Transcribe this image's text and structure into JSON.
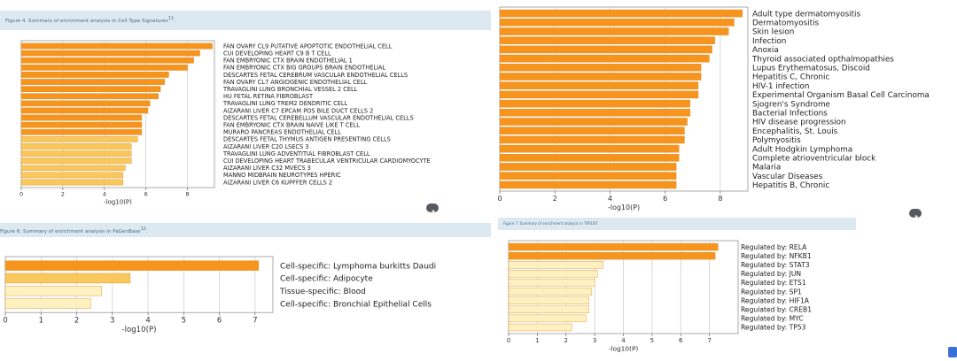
{
  "colors": {
    "bar_strong": "#f7941d",
    "bar_medium": "#f9c85c",
    "bar_light": "#fef1bf",
    "bar_stroke": "#d98a2a",
    "caption_bg": "#dde9f1",
    "caption_text": "#4a6a86",
    "grid": "#c9c9c9"
  },
  "chart_data": [
    {
      "id": "cell-type",
      "type": "bar",
      "orientation": "horizontal",
      "title": "Figure 4. Summary of enrichment analysis in Cell Type Signatures",
      "title_ref": "11",
      "xlabel": "-log10(P)",
      "xlim": [
        0,
        9.3
      ],
      "xticks": [
        0,
        2,
        4,
        6,
        8
      ],
      "grid": true,
      "categories": [
        "FAN OVARY CL9 PUTATIVE APOPTOTIC ENDOTHELIAL CELL",
        "CUI DEVELOPING HEART C9 B T CELL",
        "FAN EMBRYONIC CTX BRAIN ENDOTHELIAL 1",
        "FAN EMBRYONIC CTX BIG GROUPS BRAIN ENDOTHELIAL",
        "DESCARTES FETAL CEREBRUM VASCULAR ENDOTHELIAL CELLS",
        "FAN OVARY CL7 ANGIOGENIC ENDOTHELIAL CELL",
        "TRAVAGLINI LUNG BRONCHIAL VESSEL 2 CELL",
        "HU FETAL RETINA FIBROBLAST",
        "TRAVAGLINI LUNG TREM2 DENDRITIC CELL",
        "AIZARANI LIVER C7 EPCAM POS BILE DUCT CELLS 2",
        "DESCARTES FETAL CEREBELLUM VASCULAR ENDOTHELIAL CELLS",
        "FAN EMBRYONIC CTX BRAIN NAIVE LIKE T CELL",
        "MURARO PANCREAS ENDOTHELIAL CELL",
        "DESCARTES FETAL THYMUS ANTIGEN PRESENTING CELLS",
        "AIZARANI LIVER C20 LSECS 3",
        "TRAVAGLINI LUNG ADVENTITIAL FIBROBLAST CELL",
        "CUI DEVELOPING HEART TRABECULAR VENTRICULAR CARDIOMYOCYTE",
        "AIZARANI LIVER C32 MVECS 3",
        "MANNO MIDBRAIN NEUROTYPES HPERIC",
        "AIZARANI LIVER C6 KUPFFER CELLS 2"
      ],
      "values": [
        9.2,
        8.6,
        8.3,
        8.0,
        7.1,
        6.9,
        6.7,
        6.6,
        6.2,
        6.1,
        5.8,
        5.8,
        5.8,
        5.6,
        5.3,
        5.3,
        5.3,
        5.0,
        4.9,
        4.9
      ]
    },
    {
      "id": "disgenet",
      "type": "bar",
      "orientation": "horizontal",
      "title": "",
      "xlabel": "-log10(P)",
      "xlim": [
        0,
        9
      ],
      "xticks": [
        0,
        2,
        4,
        6,
        8
      ],
      "grid": true,
      "categories": [
        "Adult type dermatomyositis",
        "Dermatomyositis",
        "Skin lesion",
        "Infection",
        "Anoxia",
        "Thyroid associated opthalmopathies",
        "Lupus Erythematosus, Discoid",
        "Hepatitis C, Chronic",
        "HIV-1 infection",
        "Experimental Organism Basal Cell Carcinoma",
        "Sjogren's Syndrome",
        "Bacterial Infections",
        "HIV disease progression",
        "Encephalitis, St. Louis",
        "Polymyositis",
        "Adult Hodgkin Lymphoma",
        "Complete atrioventricular block",
        "Malaria",
        "Vascular Diseases",
        "Hepatitis B, Chronic"
      ],
      "values": [
        8.8,
        8.5,
        8.3,
        7.8,
        7.7,
        7.6,
        7.3,
        7.3,
        7.2,
        7.2,
        6.9,
        6.9,
        6.8,
        6.7,
        6.7,
        6.5,
        6.5,
        6.4,
        6.4,
        6.4
      ]
    },
    {
      "id": "pagenbase",
      "type": "bar",
      "orientation": "horizontal",
      "title": "Figure 6. Summary of enrichment analysis in PaGenBase",
      "title_ref": "12",
      "xlabel": "-log10(P)",
      "xlim": [
        0,
        7.5
      ],
      "xticks": [
        0,
        1,
        2,
        3,
        4,
        5,
        6,
        7
      ],
      "grid": true,
      "categories": [
        "Cell-specific: Lymphoma burkitts Daudi",
        "Cell-specific: Adipocyte",
        "Tissue-specific: Blood",
        "Cell-specific: Bronchial Epithelial Cells"
      ],
      "values": [
        7.1,
        3.5,
        2.7,
        2.4
      ]
    },
    {
      "id": "trrust",
      "type": "bar",
      "orientation": "horizontal",
      "title": "Figure 7. Summary of enrichment analysis in TRRUST",
      "xlabel": "-log10(P)",
      "xlim": [
        0,
        8
      ],
      "xticks": [
        0,
        1,
        2,
        3,
        4,
        5,
        6,
        7
      ],
      "grid": true,
      "categories": [
        "Regulated by: RELA",
        "Regulated by: NFKB1",
        "Regulated by: STAT3",
        "Regulated by: JUN",
        "Regulated by: ETS1",
        "Regulated by: SP1",
        "Regulated by: HIF1A",
        "Regulated by: CREB1",
        "Regulated by: MYC",
        "Regulated by: TP53"
      ],
      "values": [
        7.3,
        7.2,
        3.3,
        3.1,
        3.0,
        2.9,
        2.8,
        2.8,
        2.7,
        2.2
      ]
    }
  ]
}
